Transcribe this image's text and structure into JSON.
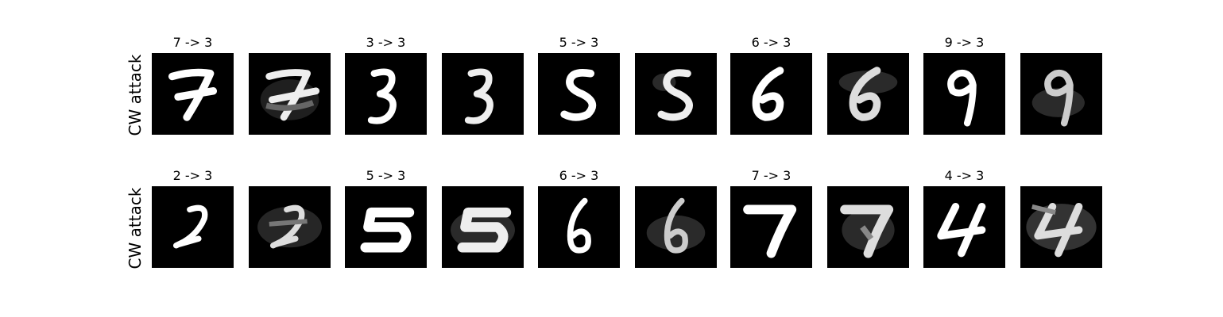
{
  "rows": [
    {
      "label": "CW attack",
      "titles": [
        "7 -> 3",
        "3 -> 3",
        "5 -> 3",
        "6 -> 3",
        "9 -> 3"
      ],
      "digits": [
        "7",
        "7",
        "3",
        "3",
        "5",
        "5",
        "6",
        "6",
        "9",
        "9"
      ]
    },
    {
      "label": "CW attack",
      "titles": [
        "2 -> 3",
        "5 -> 3",
        "6 -> 3",
        "7 -> 3",
        "4 -> 3"
      ],
      "digits": [
        "2",
        "2",
        "5",
        "5",
        "6",
        "6",
        "7",
        "7",
        "4",
        "4"
      ]
    }
  ]
}
